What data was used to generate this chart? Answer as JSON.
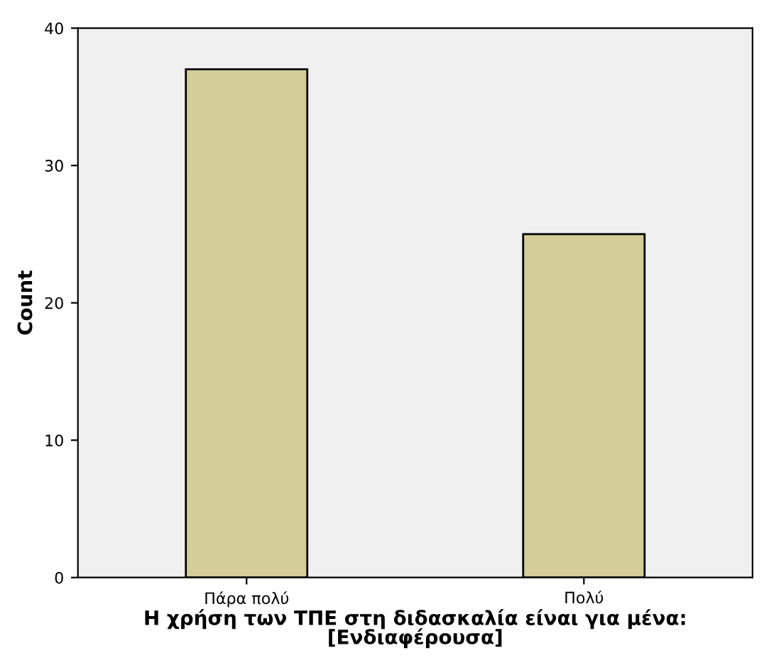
{
  "chart_data": {
    "type": "bar",
    "xlabel": "Η χρήση των ΤΠΕ στη διδασκαλία είναι για μένα:\n[Ενδιαφέρουσα]",
    "ylabel": "Count",
    "categories": [
      "Πάρα πολύ",
      "Πολύ"
    ],
    "values": [
      37,
      25
    ],
    "color": "#d3ce97",
    "ylim": [
      0,
      40
    ],
    "yticks": [
      0,
      10,
      20,
      30,
      40
    ],
    "grid": false,
    "legend": false
  }
}
